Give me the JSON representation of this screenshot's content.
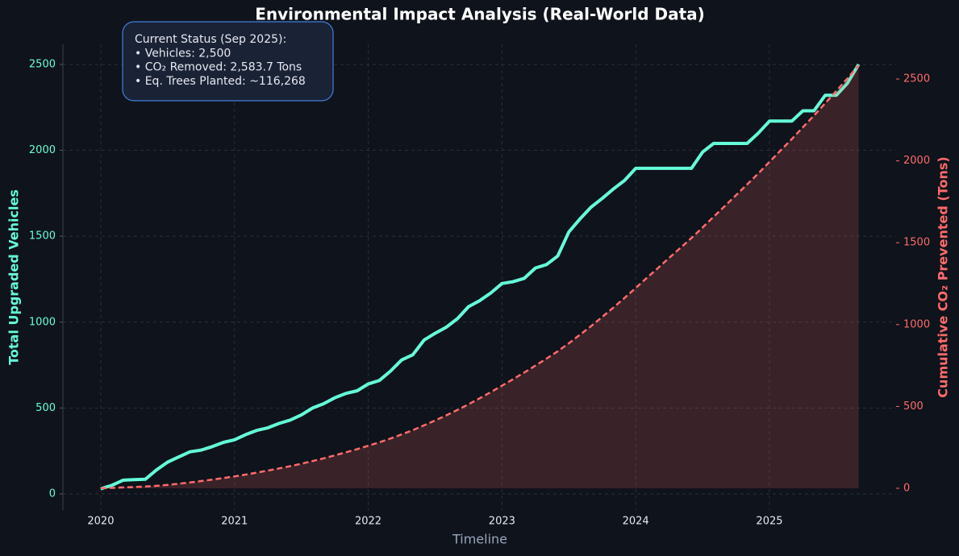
{
  "chart_data": {
    "type": "line",
    "title": "Environmental Impact Analysis (Real-World Data)",
    "xlabel": "Timeline",
    "ylabel": "Total Upgraded Vehicles",
    "y2label": "Cumulative CO₂ Prevented (Tons)",
    "annotation": [
      "Current Status (Sep 2025):",
      "• Vehicles: 2,500",
      "• CO₂ Removed: 2,583.7 Tons",
      "• Eq. Trees Planted: ~116,268"
    ],
    "x": [
      2020.0,
      2020.083,
      2020.167,
      2020.25,
      2020.333,
      2020.417,
      2020.5,
      2020.583,
      2020.667,
      2020.75,
      2020.833,
      2020.917,
      2021.0,
      2021.083,
      2021.167,
      2021.25,
      2021.333,
      2021.417,
      2021.5,
      2021.583,
      2021.667,
      2021.75,
      2021.833,
      2021.917,
      2022.0,
      2022.083,
      2022.167,
      2022.25,
      2022.333,
      2022.417,
      2022.5,
      2022.583,
      2022.667,
      2022.75,
      2022.833,
      2022.917,
      2023.0,
      2023.083,
      2023.167,
      2023.25,
      2023.333,
      2023.417,
      2023.5,
      2023.583,
      2023.667,
      2023.75,
      2023.833,
      2023.917,
      2024.0,
      2024.083,
      2024.167,
      2024.25,
      2024.333,
      2024.417,
      2024.5,
      2024.583,
      2024.667,
      2024.75,
      2024.833,
      2024.917,
      2025.0,
      2025.083,
      2025.167,
      2025.25,
      2025.333,
      2025.417,
      2025.5,
      2025.583,
      2025.667
    ],
    "xlim": [
      2019.717,
      2025.947
    ],
    "xticks": [
      2020,
      2021,
      2022,
      2023,
      2024,
      2025
    ],
    "ylim": [
      -94,
      2617
    ],
    "yticks": [
      0,
      500,
      1000,
      1500,
      2000,
      2500
    ],
    "y2lim": [
      -133,
      2712
    ],
    "y2ticks": [
      0,
      500,
      1000,
      1500,
      2000,
      2500
    ],
    "grid": true,
    "series": [
      {
        "color": "#64ffda",
        "linestyle": "solid",
        "values": [
          30,
          50,
          80,
          83,
          85,
          140,
          185,
          215,
          245,
          255,
          275,
          300,
          315,
          345,
          370,
          385,
          410,
          430,
          460,
          500,
          525,
          560,
          585,
          600,
          640,
          660,
          715,
          780,
          810,
          895,
          935,
          970,
          1020,
          1090,
          1125,
          1170,
          1225,
          1235,
          1255,
          1315,
          1335,
          1385,
          1525,
          1600,
          1670,
          1720,
          1775,
          1825,
          1895,
          1895,
          1895,
          1895,
          1895,
          1895,
          1990,
          2040,
          2040,
          2040,
          2040,
          2100,
          2170,
          2170,
          2170,
          2230,
          2230,
          2320,
          2320,
          2390,
          2500
        ]
      },
      {
        "color": "#ff6b6b",
        "linestyle": "dashed",
        "fill": true,
        "axis": "y2",
        "values": [
          1.0,
          2.6,
          5.2,
          7.8,
          10.6,
          15.1,
          21.0,
          28.0,
          35.8,
          44.1,
          52.9,
          62.6,
          72.7,
          83.8,
          95.7,
          108.2,
          121.4,
          135.2,
          150.0,
          166.1,
          183.0,
          201.1,
          219.9,
          239.2,
          259.9,
          281.1,
          304.1,
          329.3,
          355.3,
          384.2,
          414.3,
          445.5,
          478.4,
          513.5,
          549.7,
          587.4,
          626.9,
          666.6,
          707.1,
          749.4,
          792.4,
          837.0,
          886.1,
          937.7,
          991.4,
          1046.8,
          1104.0,
          1162.8,
          1223.8,
          1284.9,
          1345.9,
          1406.9,
          1467.9,
          1528.9,
          1593.0,
          1658.7,
          1724.4,
          1790.1,
          1855.8,
          1923.5,
          1993.4,
          2063.3,
          2133.2,
          2205.0,
          2276.8,
          2351.5,
          2426.3,
          2503.3,
          2583.7
        ]
      }
    ]
  }
}
